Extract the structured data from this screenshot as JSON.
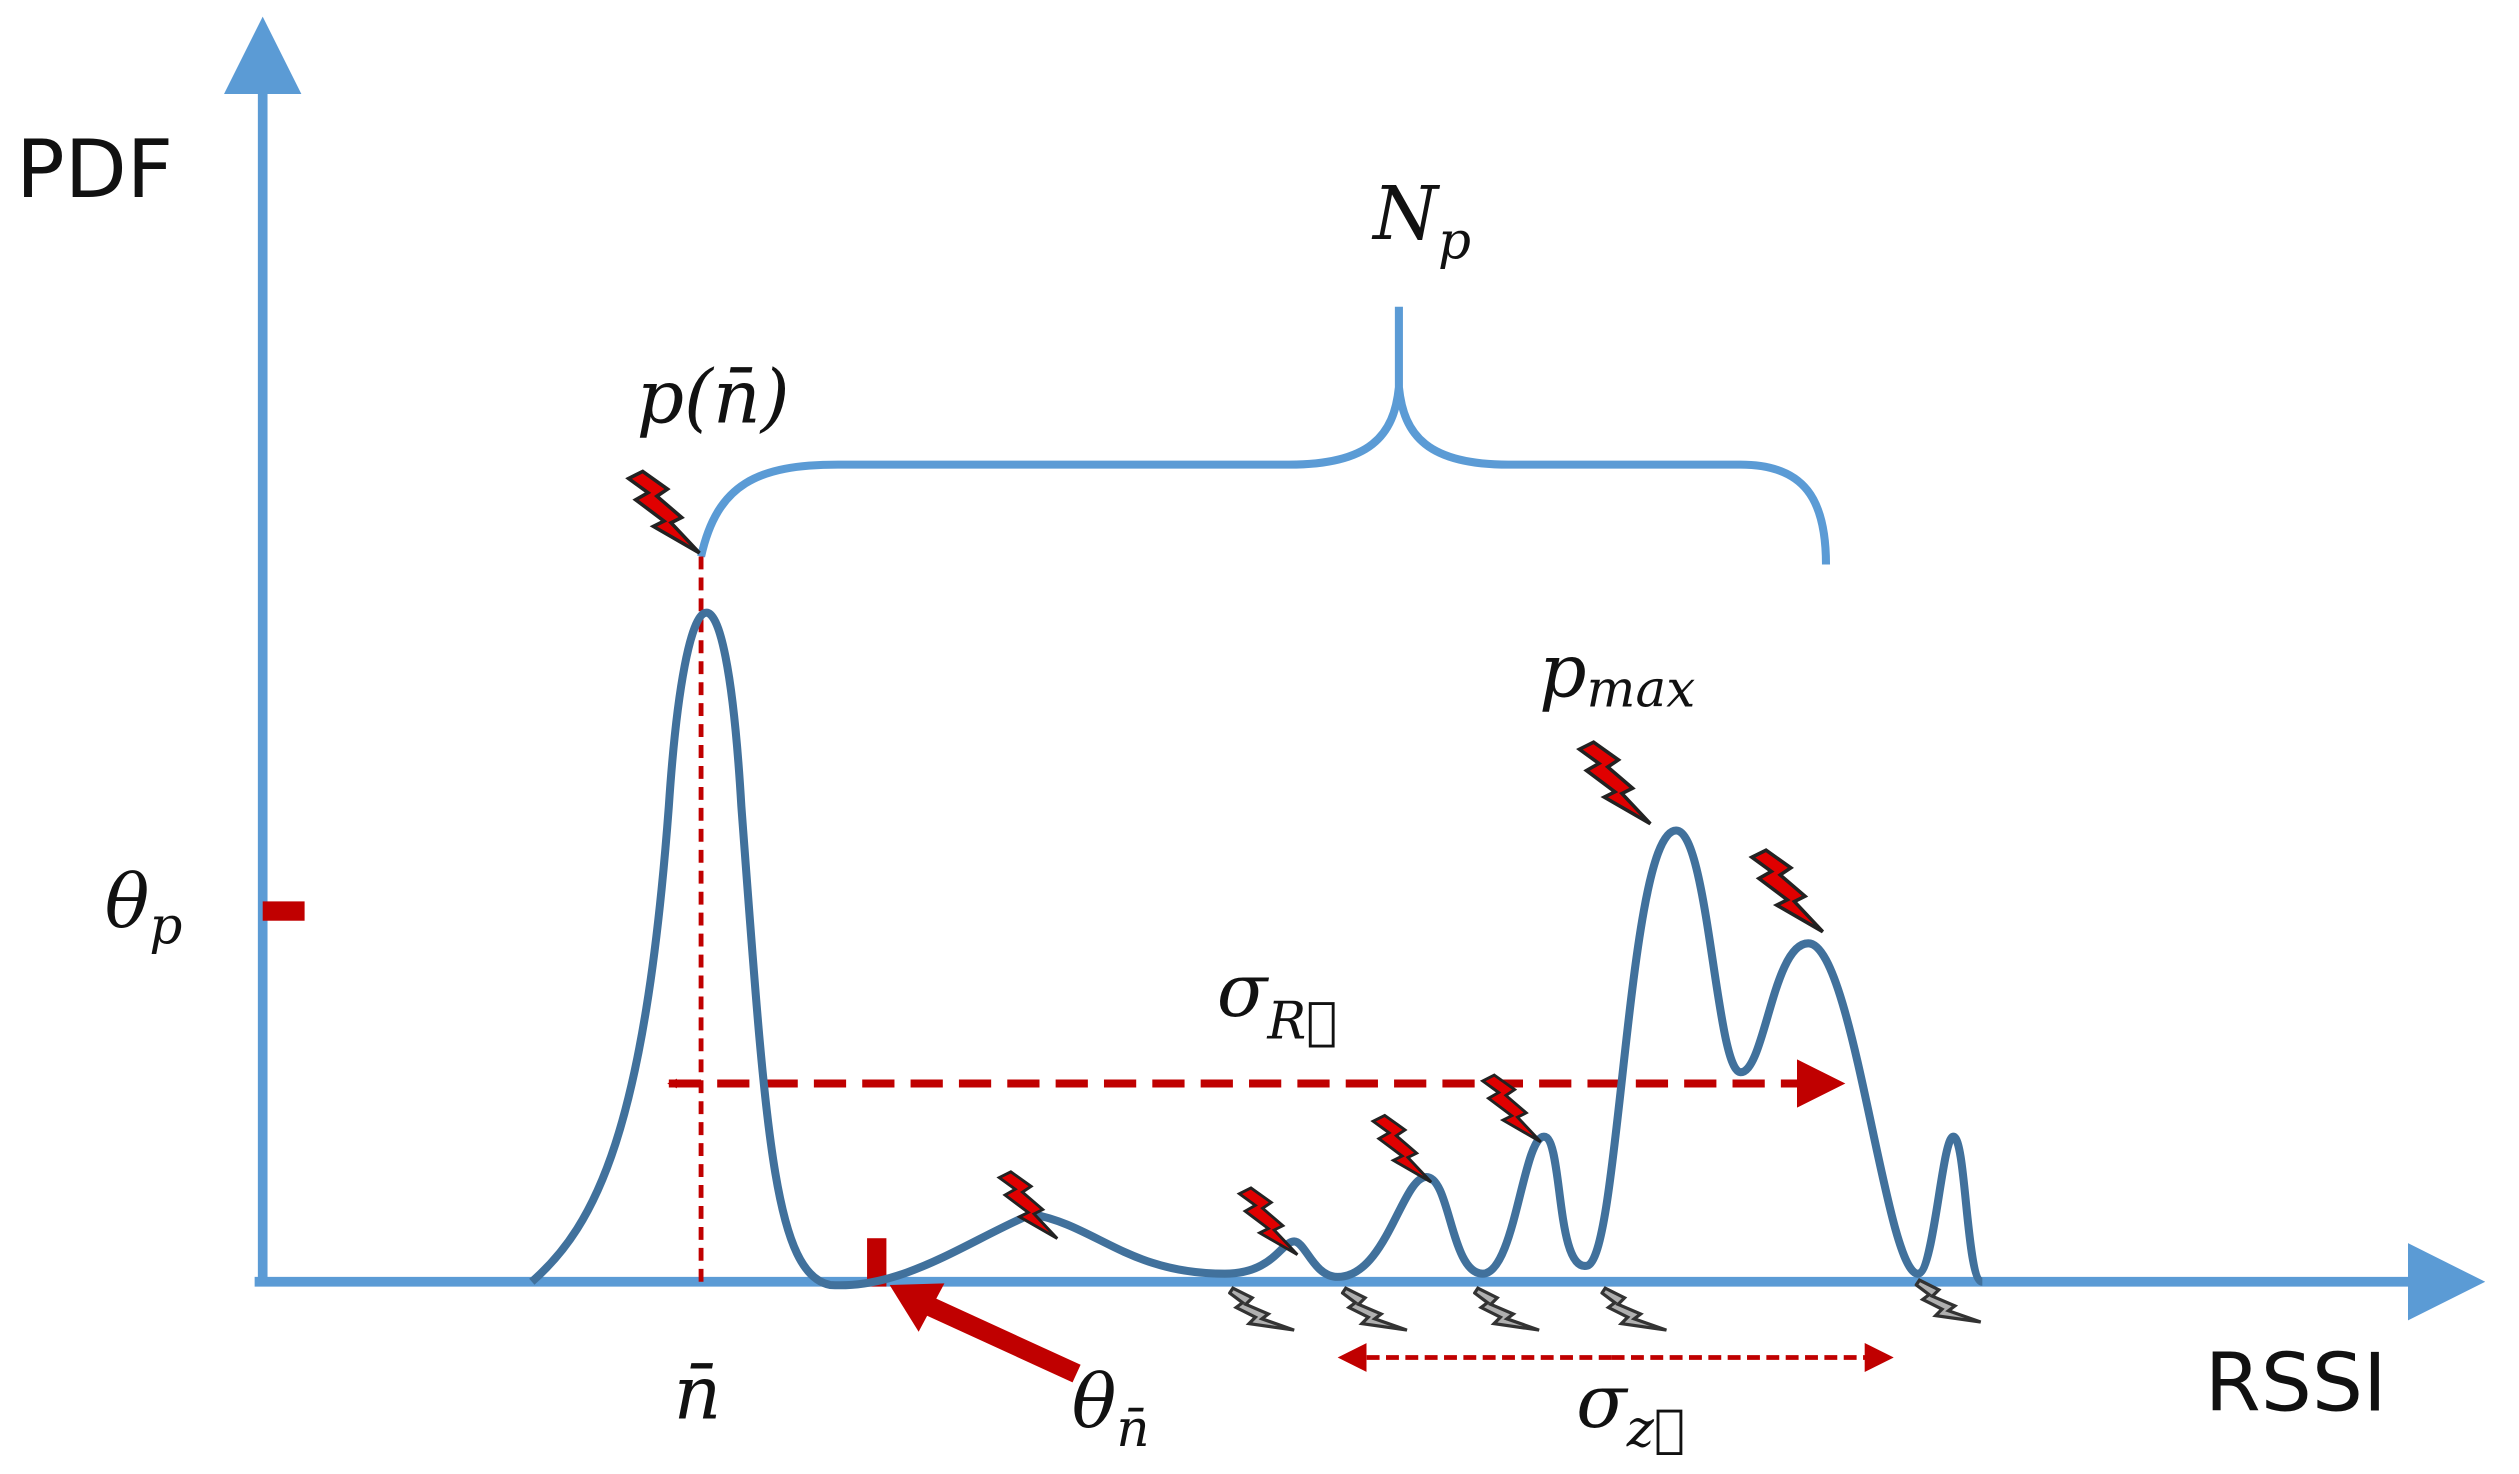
{
  "axes": {
    "y_label": "PDF",
    "x_label": "RSSI"
  },
  "labels": {
    "n_p": {
      "base": "N",
      "sub": "p"
    },
    "p_nbar": "p(n̄)",
    "p_max": {
      "base": "p",
      "sub": "max"
    },
    "theta_p": {
      "base": "θ",
      "sub": "p"
    },
    "sigma_r": {
      "base": "σ",
      "sub": "R⃗"
    },
    "n_bar": "n̄",
    "theta_nbar": {
      "base": "θ",
      "sub": "n̄"
    },
    "sigma_z": {
      "base": "σ",
      "sub": "z⃗"
    }
  }
}
